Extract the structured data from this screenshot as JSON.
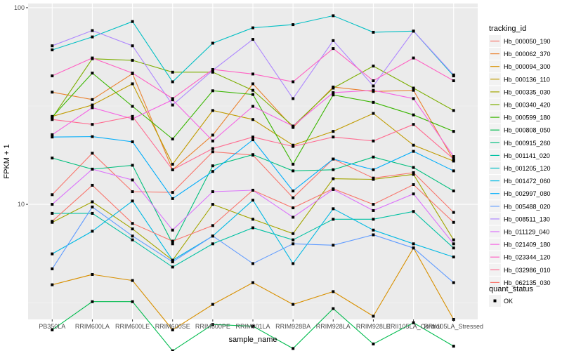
{
  "chart_data": {
    "type": "line",
    "title": "",
    "xlabel": "sample_name",
    "ylabel": "FPKM + 1",
    "yscale": "log10",
    "ylim": [
      2.6,
      105
    ],
    "yticks": [
      {
        "value": 10,
        "label": "10"
      },
      {
        "value": 100,
        "label": "100"
      }
    ],
    "grid": true,
    "legend_position": "right",
    "categories": [
      "PB350LA",
      "RRIM600LA",
      "RRIM600LE",
      "RRIM600SE",
      "RRIM600PE",
      "RRIM901LA",
      "RRIM928BA",
      "RRIM928LA",
      "RRIM928LE",
      "RRII105LA_Control",
      "RRII105LA_Stressed"
    ],
    "legend_title": "tracking_id",
    "shape_legend_title": "quant_status",
    "shape_legend_items": [
      {
        "label": "OK",
        "shape": "square"
      }
    ],
    "series": [
      {
        "name": "Hb_000050_190",
        "color": "#F8766D",
        "values": [
          11.2,
          18.2,
          11.6,
          11.5,
          18.5,
          17.8,
          10.8,
          17.0,
          13.6,
          14.5,
          9.1
        ]
      },
      {
        "name": "Hb_000062_370",
        "color": "#EA8331",
        "values": [
          37.2,
          34.1,
          46.2,
          15.0,
          22.5,
          41.0,
          24.6,
          39.5,
          37.5,
          38.0,
          16.8
        ]
      },
      {
        "name": "Hb_000094_300",
        "color": "#D89000",
        "values": [
          3.9,
          4.4,
          4.1,
          2.3,
          3.1,
          4.0,
          3.1,
          3.6,
          2.7,
          6.0,
          2.6
        ]
      },
      {
        "name": "Hb_000136_110",
        "color": "#C09B00",
        "values": [
          28.0,
          32.0,
          41.0,
          16.0,
          30.0,
          27.0,
          20.0,
          23.5,
          29.0,
          20.0,
          16.6
        ]
      },
      {
        "name": "Hb_000335_030",
        "color": "#A3A500",
        "values": [
          8.1,
          10.3,
          7.5,
          5.2,
          10.0,
          8.4,
          7.1,
          13.5,
          13.4,
          14.2,
          6.6
        ]
      },
      {
        "name": "Hb_000340_420",
        "color": "#7CAE00",
        "values": [
          27.5,
          55.0,
          54.0,
          47.0,
          47.0,
          38.0,
          25.0,
          39.0,
          50.5,
          39.0,
          30.0
        ]
      },
      {
        "name": "Hb_000599_180",
        "color": "#39B600",
        "values": [
          27.8,
          46.5,
          31.5,
          21.5,
          37.8,
          36.2,
          16.0,
          36.0,
          33.0,
          28.5,
          23.5
        ]
      },
      {
        "name": "Hb_000808_050",
        "color": "#00BB4E",
        "values": [
          2.3,
          3.2,
          3.2,
          1.8,
          2.45,
          2.4,
          1.85,
          2.95,
          1.95,
          2.5,
          1.9
        ]
      },
      {
        "name": "Hb_000915_260",
        "color": "#00BF7D",
        "values": [
          17.2,
          15.1,
          15.8,
          6.3,
          15.7,
          17.9,
          14.8,
          15.0,
          17.4,
          15.4,
          11.7
        ]
      },
      {
        "name": "Hb_001141_020",
        "color": "#00C1A3",
        "values": [
          9.0,
          9.0,
          6.6,
          4.8,
          6.3,
          7.6,
          6.6,
          8.4,
          8.4,
          9.2,
          6.0
        ]
      },
      {
        "name": "Hb_001205_120",
        "color": "#00BFC4",
        "values": [
          61.0,
          71.0,
          85.0,
          42.0,
          66.0,
          79.0,
          82.0,
          91.0,
          75.0,
          76.0,
          45.0
        ]
      },
      {
        "name": "Hb_001472_060",
        "color": "#00B9E3",
        "values": [
          5.6,
          7.3,
          10.4,
          5.2,
          6.9,
          10.5,
          5.0,
          9.5,
          7.4,
          6.3,
          5.4
        ]
      },
      {
        "name": "Hb_002997_080",
        "color": "#00ADFA",
        "values": [
          22.0,
          22.1,
          20.8,
          10.7,
          14.7,
          21.3,
          11.7,
          17.0,
          15.0,
          18.6,
          14.8
        ]
      },
      {
        "name": "Hb_005488_020",
        "color": "#619CFF",
        "values": [
          4.7,
          9.7,
          6.9,
          5.1,
          6.9,
          5.0,
          6.3,
          6.2,
          7.0,
          6.0,
          4.0
        ]
      },
      {
        "name": "Hb_008511_130",
        "color": "#AE87FF",
        "values": [
          64.0,
          76.5,
          64.0,
          32.0,
          48.0,
          69.0,
          34.5,
          68.0,
          40.0,
          76.0,
          45.5
        ]
      },
      {
        "name": "Hb_011129_040",
        "color": "#DB72FB",
        "values": [
          10.0,
          15.1,
          13.3,
          7.4,
          11.6,
          11.8,
          8.6,
          11.9,
          9.3,
          11.3,
          6.3
        ]
      },
      {
        "name": "Hb_021409_180",
        "color": "#F564E3",
        "values": [
          22.6,
          31.0,
          27.2,
          34.0,
          21.0,
          31.5,
          25.0,
          37.0,
          38.0,
          34.5,
          17.5
        ]
      },
      {
        "name": "Hb_023344_120",
        "color": "#FF61C3",
        "values": [
          45.0,
          55.5,
          46.5,
          34.5,
          48.5,
          46.0,
          42.0,
          62.0,
          42.5,
          55.5,
          42.5
        ]
      },
      {
        "name": "Hb_032986_010",
        "color": "#FF6C91",
        "values": [
          27.0,
          25.5,
          28.0,
          15.0,
          19.2,
          22.0,
          19.7,
          22.0,
          21.0,
          25.5,
          17.0
        ]
      },
      {
        "name": "Hb_062135_030",
        "color": "#F8766D",
        "values": [
          8.2,
          12.5,
          8.0,
          6.5,
          7.8,
          11.8,
          9.6,
          12.0,
          10.0,
          12.6,
          8.1
        ]
      }
    ]
  }
}
